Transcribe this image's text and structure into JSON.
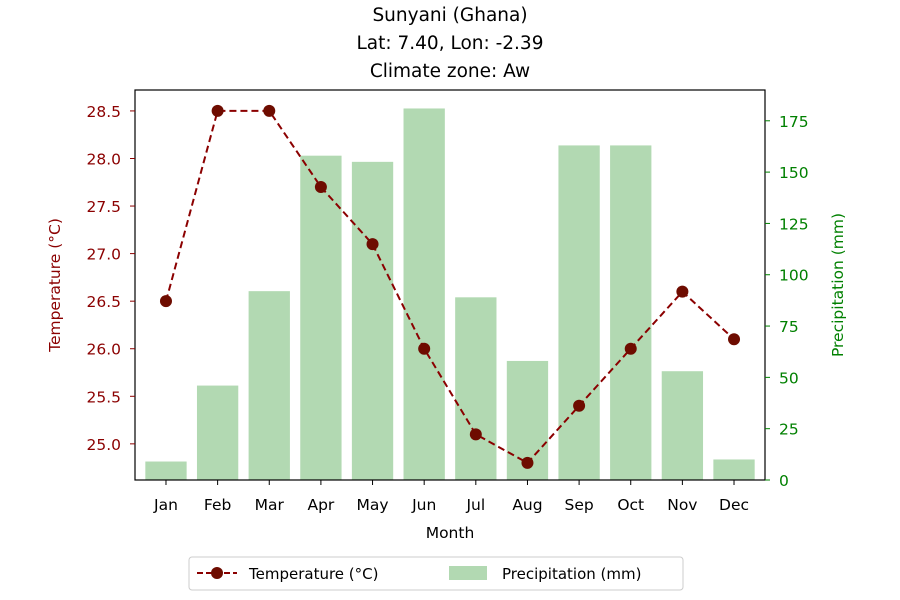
{
  "chart_data": {
    "type": "bar+line",
    "title_lines": [
      "Sunyani (Ghana)",
      "Lat: 7.40, Lon: -2.39",
      "Climate zone: Aw"
    ],
    "xlabel": "Month",
    "categories": [
      "Jan",
      "Feb",
      "Mar",
      "Apr",
      "May",
      "Jun",
      "Jul",
      "Aug",
      "Sep",
      "Oct",
      "Nov",
      "Dec"
    ],
    "temperature": {
      "name": "Temperature (°C)",
      "axis_label": "Temperature (°C)",
      "axis": "left",
      "values": [
        26.5,
        28.5,
        28.5,
        27.7,
        27.1,
        26.0,
        25.1,
        24.8,
        25.4,
        26.0,
        26.6,
        26.1
      ],
      "ylim": [
        24.62,
        28.72
      ],
      "ticks": [
        25.0,
        25.5,
        26.0,
        26.5,
        27.0,
        27.5,
        28.0,
        28.5
      ],
      "color": "#8b0000",
      "line_style": "dashed",
      "marker": "circle"
    },
    "precipitation": {
      "name": "Precipitation (mm)",
      "axis_label": "Precipitation (mm)",
      "axis": "right",
      "values": [
        9,
        46,
        92,
        158,
        155,
        181,
        89,
        58,
        163,
        163,
        53,
        10
      ],
      "ylim": [
        0,
        190
      ],
      "ticks": [
        0,
        25,
        50,
        75,
        100,
        125,
        150,
        175
      ],
      "color": "#b2d9b2"
    },
    "legend": {
      "placement": "bottom-center",
      "items": [
        "Temperature (°C)",
        "Precipitation (mm)"
      ]
    },
    "grid": false,
    "colors": {
      "left_axis": "#8b0000",
      "right_axis": "#008000",
      "line": "#8b0000",
      "marker_fill": "#6e0c00",
      "bars": "#b2d9b2"
    }
  }
}
